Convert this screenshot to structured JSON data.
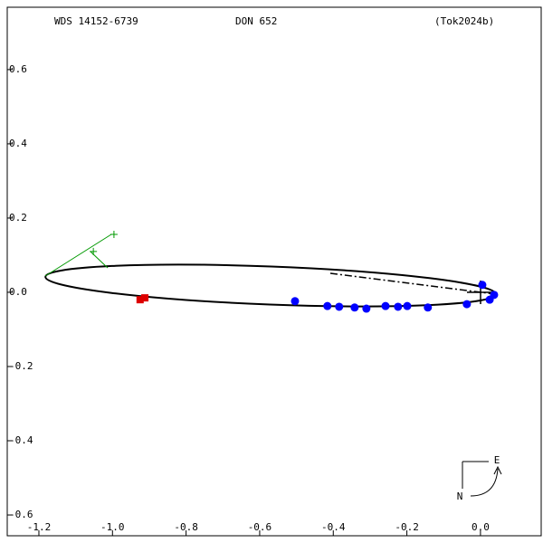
{
  "chart_data": {
    "type": "scatter",
    "title": "WDS 14152-6739",
    "subtitle": "DON 652",
    "reference": "(Tok2024b)",
    "compass": {
      "east": "E",
      "north": "N"
    },
    "xlim": [
      -1.286,
      0.165
    ],
    "ylim": [
      -0.656,
      0.768
    ],
    "xticks": [
      -1.2,
      {
        "value": -1,
        "label": "-1.0"
      },
      -0.8,
      -0.6,
      -0.4,
      -0.2,
      {
        "value": 0,
        "label": "0.0"
      }
    ],
    "yticks": [
      -0.6,
      -0.4,
      -0.2,
      {
        "value": 0,
        "label": "0.0"
      },
      0.2,
      0.4,
      0.6
    ],
    "series": [
      {
        "color": "#0000ff",
        "marker": "dot",
        "x": [
          -0.504,
          -0.416,
          -0.384,
          -0.342,
          -0.31,
          -0.258,
          -0.224,
          -0.199,
          -0.143,
          -0.037,
          0.005,
          0.025,
          0.037
        ],
        "y": [
          -0.024,
          -0.037,
          -0.039,
          -0.041,
          -0.044,
          -0.037,
          -0.039,
          -0.037,
          -0.041,
          -0.032,
          0.02,
          -0.02,
          -0.007
        ]
      },
      {
        "color": "#dd0000",
        "marker": "square",
        "x": [
          -0.925,
          -0.912
        ],
        "y": [
          -0.02,
          -0.015
        ]
      },
      {
        "color": "#009900",
        "marker": "plus",
        "x": [
          -0.996,
          -1.052
        ],
        "y": [
          0.156,
          0.11
        ]
      }
    ]
  }
}
